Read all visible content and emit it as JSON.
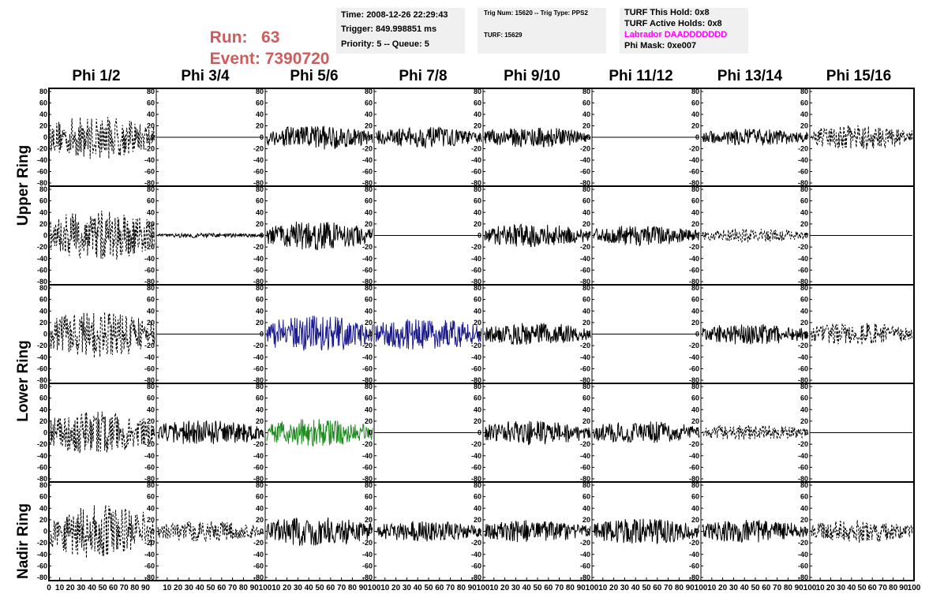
{
  "header": {
    "run_label": "Run:",
    "run_value": "63",
    "event_label": "Event:",
    "event_value": "7390720",
    "run_color": "#cd5c5c"
  },
  "info_box_1": {
    "time": "Time: 2008-12-26 22:29:43",
    "trigger": "Trigger: 849.998851 ms",
    "priority": "Priority: 5 -- Queue: 5"
  },
  "info_box_2": {
    "trig": "Trig Num: 15620 -- Trig Type: PPS2",
    "turf": "TURF: 15629"
  },
  "info_box_3": {
    "this_hold": "TURF This Hold: 0x8",
    "active_holds": "TURF Active Holds: 0x8",
    "labrador": "Labrador DAADDDDDDD",
    "labrador_color": "#ff00ff",
    "phi_mask": "Phi Mask: 0xe007"
  },
  "chart_data": {
    "type": "line",
    "description_columns": [
      "Phi 1/2",
      "Phi 3/4",
      "Phi 5/6",
      "Phi 7/8",
      "Phi 9/10",
      "Phi 11/12",
      "Phi 13/14",
      "Phi 15/16"
    ],
    "row_group_labels": [
      "Upper Ring",
      "Lower Ring",
      "Nadir Ring"
    ],
    "y_ticks": [
      "80",
      "60",
      "40",
      "20",
      "0",
      "-20",
      "-40",
      "-60",
      "-80"
    ],
    "x_ticks": [
      "0",
      "10",
      "20",
      "30",
      "40",
      "50",
      "60",
      "70",
      "80",
      "90",
      "100"
    ],
    "x_range": [
      0,
      100
    ],
    "y_range": [
      -80,
      80
    ],
    "trace_colors": {
      "black": "#000000",
      "blue": "#1a1a8c",
      "green": "#1e8c1e"
    },
    "panels": [
      [
        {
          "style": "dashed",
          "amp": 38
        },
        {
          "style": "flat",
          "amp": 0
        },
        {
          "style": "solid",
          "amp": 22
        },
        {
          "style": "solid",
          "amp": 18
        },
        {
          "style": "solid",
          "amp": 18
        },
        {
          "style": "flat",
          "amp": 0
        },
        {
          "style": "solid",
          "amp": 15
        },
        {
          "style": "dashed",
          "amp": 22
        }
      ],
      [
        {
          "style": "dashed",
          "amp": 45
        },
        {
          "style": "solid",
          "amp": 4
        },
        {
          "style": "solid",
          "amp": 25
        },
        {
          "style": "flat",
          "amp": 0
        },
        {
          "style": "solid",
          "amp": 20
        },
        {
          "style": "solid",
          "amp": 18
        },
        {
          "style": "dashed",
          "amp": 12
        },
        {
          "style": "flat",
          "amp": 0
        }
      ],
      [
        {
          "style": "dashed",
          "amp": 42
        },
        {
          "style": "flat",
          "amp": 0
        },
        {
          "style": "solid",
          "amp": 32,
          "color": "blue"
        },
        {
          "style": "solid",
          "amp": 28,
          "color": "blue"
        },
        {
          "style": "solid",
          "amp": 20
        },
        {
          "style": "flat",
          "amp": 0
        },
        {
          "style": "solid",
          "amp": 18
        },
        {
          "style": "dashed",
          "amp": 20
        }
      ],
      [
        {
          "style": "dashed",
          "amp": 38
        },
        {
          "style": "solid",
          "amp": 22
        },
        {
          "style": "solid",
          "amp": 24,
          "color": "green"
        },
        {
          "style": "flat",
          "amp": 0
        },
        {
          "style": "solid",
          "amp": 22
        },
        {
          "style": "solid",
          "amp": 20
        },
        {
          "style": "dashed",
          "amp": 14
        },
        {
          "style": "flat",
          "amp": 0
        }
      ],
      [
        {
          "style": "dashed",
          "amp": 48
        },
        {
          "style": "dashed",
          "amp": 18
        },
        {
          "style": "solid",
          "amp": 26
        },
        {
          "style": "solid",
          "amp": 18
        },
        {
          "style": "solid",
          "amp": 20
        },
        {
          "style": "solid",
          "amp": 22
        },
        {
          "style": "solid",
          "amp": 20
        },
        {
          "style": "dashed",
          "amp": 20
        }
      ]
    ]
  }
}
